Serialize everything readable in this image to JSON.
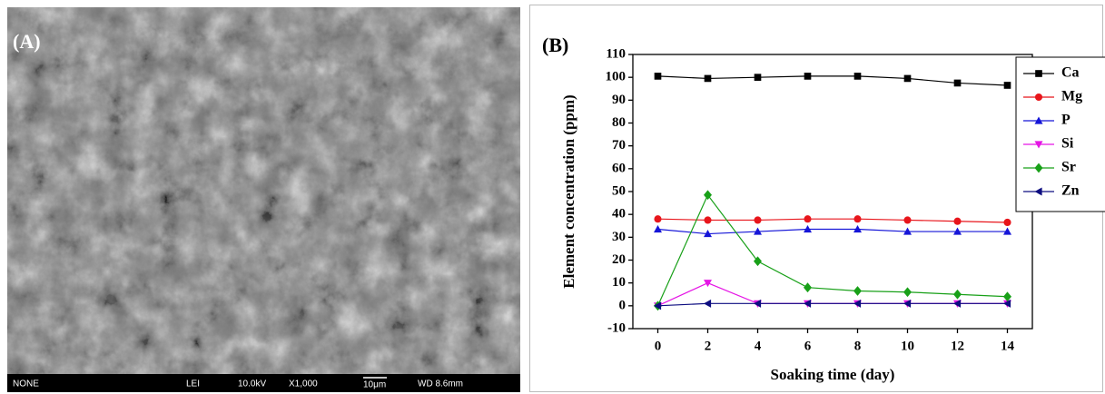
{
  "panel_a": {
    "label": "(A)",
    "info_bar": [
      "NONE",
      "LEI",
      "10.0kV",
      "X1,000",
      "10μm",
      "WD 8.6mm"
    ]
  },
  "chart_data": {
    "type": "line",
    "panel_label": "(B)",
    "x_label": "Soaking time (day)",
    "y_label": "Element concentration (ppm)",
    "x": [
      0,
      2,
      4,
      6,
      8,
      10,
      12,
      14
    ],
    "xlim": [
      -1,
      15
    ],
    "xticks": [
      0,
      2,
      4,
      6,
      8,
      10,
      12,
      14
    ],
    "ylim": [
      -10,
      110
    ],
    "yticks": [
      -10,
      0,
      10,
      20,
      30,
      40,
      50,
      60,
      70,
      80,
      90,
      100,
      110
    ],
    "legend": "upper right",
    "series": [
      {
        "name": "Ca",
        "color": "#000000",
        "marker": "square",
        "values": [
          100.5,
          99.5,
          100,
          100.5,
          100.5,
          99.5,
          97.5,
          96.5
        ]
      },
      {
        "name": "Mg",
        "color": "#e8151b",
        "marker": "circle",
        "values": [
          38,
          37.5,
          37.5,
          38,
          38,
          37.5,
          37,
          36.5
        ]
      },
      {
        "name": "P",
        "color": "#1515d8",
        "marker": "triangle-up",
        "values": [
          33.5,
          31.5,
          32.5,
          33.5,
          33.5,
          32.5,
          32.5,
          32.5
        ]
      },
      {
        "name": "Si",
        "color": "#e515e5",
        "marker": "triangle-down",
        "values": [
          0,
          10,
          1,
          1,
          1,
          1,
          1,
          1
        ]
      },
      {
        "name": "Sr",
        "color": "#18a018",
        "marker": "diamond",
        "values": [
          0,
          48.5,
          19.5,
          8,
          6.5,
          6,
          5,
          4
        ]
      },
      {
        "name": "Zn",
        "color": "#0d0d80",
        "marker": "triangle-left",
        "values": [
          0,
          1,
          1,
          1,
          1,
          1,
          1,
          1
        ]
      }
    ]
  }
}
